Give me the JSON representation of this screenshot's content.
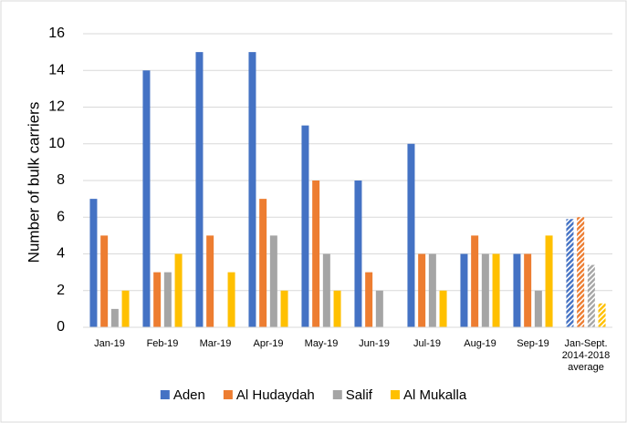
{
  "chart_data": {
    "type": "bar",
    "y_label": "Number of bulk carriers",
    "categories": [
      "Jan-19",
      "Feb-19",
      "Mar-19",
      "Apr-19",
      "May-19",
      "Jun-19",
      "Jul-19",
      "Aug-19",
      "Sep-19",
      "Jan-Sept. 2014-2018 average"
    ],
    "series": [
      {
        "name": "Aden",
        "color": "#4472c4",
        "values": [
          7,
          14,
          15,
          15,
          11,
          8,
          10,
          4,
          4,
          5.9
        ]
      },
      {
        "name": "Al Hudaydah",
        "color": "#ed7d31",
        "values": [
          5,
          3,
          5,
          7,
          8,
          3,
          4,
          5,
          4,
          6.0
        ]
      },
      {
        "name": "Salif",
        "color": "#a5a5a5",
        "values": [
          1,
          3,
          0,
          5,
          4,
          2,
          4,
          4,
          2,
          3.4
        ]
      },
      {
        "name": "Al Mukalla",
        "color": "#ffc000",
        "values": [
          2,
          4,
          3,
          2,
          2,
          0,
          2,
          4,
          5,
          1.3
        ]
      }
    ],
    "hatched_category_index": 9,
    "ylim": [
      0,
      16
    ],
    "yticks": [
      0,
      2,
      4,
      6,
      8,
      10,
      12,
      14,
      16
    ],
    "grid": true,
    "legend": "bottom"
  }
}
